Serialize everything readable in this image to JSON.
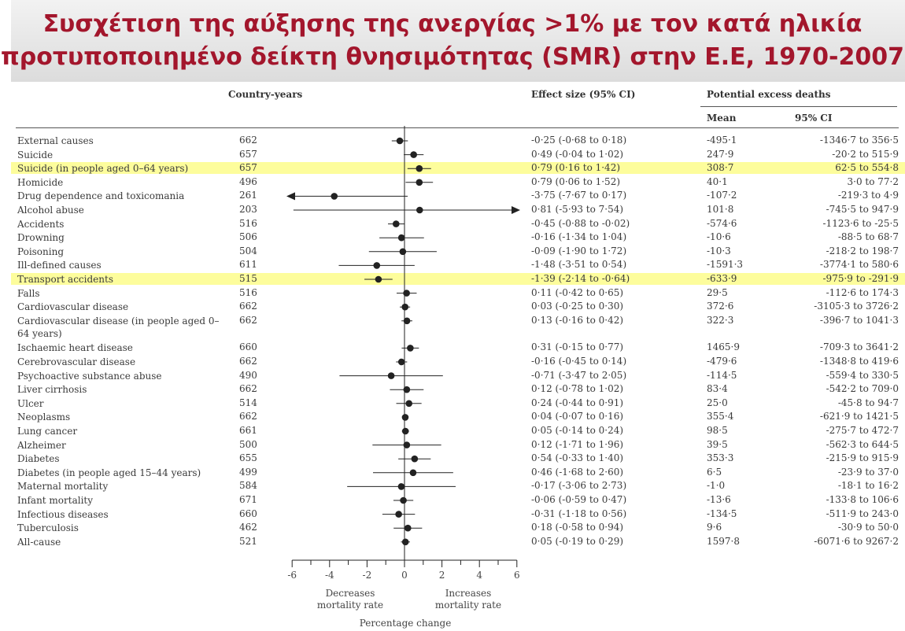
{
  "slide": {
    "title_line1": "Συσχέτιση της αύξησης της ανεργίας >1% με τον κατά ηλικία",
    "title_line2": "προτυποποιημένο δείκτη θνησιμότητας (SMR) στην  E.E, 1970-2007"
  },
  "table": {
    "col_country_years": "Country-years",
    "col_effect": "Effect size (95% CI)",
    "col_excess": "Potential excess deaths",
    "col_mean": "Mean",
    "col_ci": "95% CI"
  },
  "axis": {
    "ticks": [
      "-6",
      "-4",
      "-2",
      "0",
      "2",
      "4",
      "6"
    ],
    "decreases_label": "Decreases\nmortality rate",
    "increases_label": "Increases\nmortality rate",
    "xlabel": "Percentage change"
  },
  "colors": {
    "title": "#a3162c",
    "highlight": "#fdfd9c",
    "ink": "#222222"
  },
  "chart_data": {
    "type": "forest",
    "xlim": [
      -6,
      6
    ],
    "xlabel": "Percentage change",
    "rows": [
      {
        "name": "External causes",
        "years": "662",
        "effect": "-0·25 (-0·68 to 0·18)",
        "mean": "-495·1",
        "ci": "-1346·7 to 356·5",
        "est": -0.25,
        "lo": -0.68,
        "hi": 0.18
      },
      {
        "name": "Suicide",
        "years": "657",
        "effect": "0·49 (-0·04 to 1·02)",
        "mean": "247·9",
        "ci": "-20·2 to 515·9",
        "est": 0.49,
        "lo": -0.04,
        "hi": 1.02
      },
      {
        "name": "Suicide (in people aged 0–64 years)",
        "years": "657",
        "effect": "0·79 (0·16 to 1·42)",
        "mean": "308·7",
        "ci": "62·5 to 554·8",
        "est": 0.79,
        "lo": 0.16,
        "hi": 1.42,
        "highlight": true
      },
      {
        "name": "Homicide",
        "years": "496",
        "effect": "0·79 (0·06 to 1·52)",
        "mean": "40·1",
        "ci": "3·0 to 77·2",
        "est": 0.79,
        "lo": 0.06,
        "hi": 1.52
      },
      {
        "name": "Drug dependence and toxicomania",
        "years": "261",
        "effect": "-3·75 (-7·67 to 0·17)",
        "mean": "-107·2",
        "ci": "-219·3 to 4·9",
        "est": -3.75,
        "lo": -7.67,
        "hi": 0.17
      },
      {
        "name": "Alcohol abuse",
        "years": "203",
        "effect": "0·81 (-5·93 to 7·54)",
        "mean": "101·8",
        "ci": "-745·5 to 947·9",
        "est": 0.81,
        "lo": -5.93,
        "hi": 7.54
      },
      {
        "name": "Accidents",
        "years": "516",
        "effect": "-0·45 (-0·88 to -0·02)",
        "mean": "-574·6",
        "ci": "-1123·6 to -25·5",
        "est": -0.45,
        "lo": -0.88,
        "hi": -0.02
      },
      {
        "name": "Drowning",
        "years": "506",
        "effect": "-0·16 (-1·34 to 1·04)",
        "mean": "-10·6",
        "ci": "-88·5 to 68·7",
        "est": -0.16,
        "lo": -1.34,
        "hi": 1.04
      },
      {
        "name": "Poisoning",
        "years": "504",
        "effect": "-0·09 (-1·90 to 1·72)",
        "mean": "-10·3",
        "ci": "-218·2 to 198·7",
        "est": -0.09,
        "lo": -1.9,
        "hi": 1.72
      },
      {
        "name": "Ill-defined causes",
        "years": "611",
        "effect": "-1·48 (-3·51 to 0·54)",
        "mean": "-1591·3",
        "ci": "-3774·1 to 580·6",
        "est": -1.48,
        "lo": -3.51,
        "hi": 0.54
      },
      {
        "name": "Transport accidents",
        "years": "515",
        "effect": "-1·39 (-2·14 to -0·64)",
        "mean": "-633·9",
        "ci": "-975·9 to -291·9",
        "est": -1.39,
        "lo": -2.14,
        "hi": -0.64,
        "highlight": true
      },
      {
        "name": "Falls",
        "years": "516",
        "effect": "0·11 (-0·42 to 0·65)",
        "mean": "29·5",
        "ci": "-112·6 to 174·3",
        "est": 0.11,
        "lo": -0.42,
        "hi": 0.65
      },
      {
        "name": "Cardiovascular disease",
        "years": "662",
        "effect": "0·03 (-0·25 to 0·30)",
        "mean": "372·6",
        "ci": "-3105·3 to 3726·2",
        "est": 0.03,
        "lo": -0.25,
        "hi": 0.3
      },
      {
        "name": "Cardiovascular disease (in people aged 0–64 years)",
        "years": "662",
        "effect": "0·13 (-0·16 to 0·42)",
        "mean": "322·3",
        "ci": "-396·7 to 1041·3",
        "est": 0.13,
        "lo": -0.16,
        "hi": 0.42,
        "tall": true
      },
      {
        "name": "Ischaemic heart disease",
        "years": "660",
        "effect": "0·31 (-0·15 to 0·77)",
        "mean": "1465·9",
        "ci": "-709·3 to 3641·2",
        "est": 0.31,
        "lo": -0.15,
        "hi": 0.77
      },
      {
        "name": "Cerebrovascular disease",
        "years": "662",
        "effect": "-0·16 (-0·45 to 0·14)",
        "mean": "-479·6",
        "ci": "-1348·8 to 419·6",
        "est": -0.16,
        "lo": -0.45,
        "hi": 0.14
      },
      {
        "name": "Psychoactive substance abuse",
        "years": "490",
        "effect": "-0·71 (-3·47 to 2·05)",
        "mean": "-114·5",
        "ci": "-559·4 to 330·5",
        "est": -0.71,
        "lo": -3.47,
        "hi": 2.05
      },
      {
        "name": "Liver cirrhosis",
        "years": "662",
        "effect": "0·12 (-0·78 to 1·02)",
        "mean": "83·4",
        "ci": "-542·2 to 709·0",
        "est": 0.12,
        "lo": -0.78,
        "hi": 1.02
      },
      {
        "name": "Ulcer",
        "years": "514",
        "effect": "0·24 (-0·44 to 0·91)",
        "mean": "25·0",
        "ci": "-45·8 to 94·7",
        "est": 0.24,
        "lo": -0.44,
        "hi": 0.91
      },
      {
        "name": "Neoplasms",
        "years": "662",
        "effect": "0·04 (-0·07 to 0·16)",
        "mean": "355·4",
        "ci": "-621·9 to 1421·5",
        "est": 0.04,
        "lo": -0.07,
        "hi": 0.16
      },
      {
        "name": "Lung cancer",
        "years": "661",
        "effect": "0·05 (-0·14 to 0·24)",
        "mean": "98·5",
        "ci": "-275·7 to 472·7",
        "est": 0.05,
        "lo": -0.14,
        "hi": 0.24
      },
      {
        "name": "Alzheimer",
        "years": "500",
        "effect": "0·12 (-1·71 to 1·96)",
        "mean": "39·5",
        "ci": "-562·3 to 644·5",
        "est": 0.12,
        "lo": -1.71,
        "hi": 1.96
      },
      {
        "name": "Diabetes",
        "years": "655",
        "effect": "0·54 (-0·33 to 1·40)",
        "mean": "353·3",
        "ci": "-215·9 to 915·9",
        "est": 0.54,
        "lo": -0.33,
        "hi": 1.4
      },
      {
        "name": "Diabetes (in people aged 15–44 years)",
        "years": "499",
        "effect": "0·46 (-1·68 to 2·60)",
        "mean": "6·5",
        "ci": "-23·9 to 37·0",
        "est": 0.46,
        "lo": -1.68,
        "hi": 2.6
      },
      {
        "name": "Maternal mortality",
        "years": "584",
        "effect": "-0·17 (-3·06 to 2·73)",
        "mean": "-1·0",
        "ci": "-18·1 to 16·2",
        "est": -0.17,
        "lo": -3.06,
        "hi": 2.73
      },
      {
        "name": "Infant mortality",
        "years": "671",
        "effect": "-0·06 (-0·59 to 0·47)",
        "mean": "-13·6",
        "ci": "-133·8 to 106·6",
        "est": -0.06,
        "lo": -0.59,
        "hi": 0.47
      },
      {
        "name": "Infectious diseases",
        "years": "660",
        "effect": "-0·31 (-1·18 to 0·56)",
        "mean": "-134·5",
        "ci": "-511·9 to 243·0",
        "est": -0.31,
        "lo": -1.18,
        "hi": 0.56
      },
      {
        "name": "Tuberculosis",
        "years": "462",
        "effect": "0·18 (-0·58 to 0·94)",
        "mean": "9·6",
        "ci": "-30·9 to 50·0",
        "est": 0.18,
        "lo": -0.58,
        "hi": 0.94
      },
      {
        "name": "All-cause",
        "years": "521",
        "effect": "0·05 (-0·19 to 0·29)",
        "mean": "1597·8",
        "ci": "-6071·6 to 9267·2",
        "est": 0.05,
        "lo": -0.19,
        "hi": 0.29
      }
    ]
  }
}
